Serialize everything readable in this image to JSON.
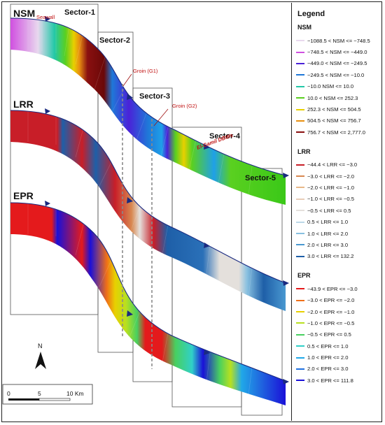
{
  "profiles": {
    "nsm": "NSM",
    "lrr": "LRR",
    "epr": "EPR"
  },
  "sectors": [
    "Sector-1",
    "Sector-2",
    "Sector-3",
    "Sector-4",
    "Sector-5"
  ],
  "annotations": {
    "seawall": "Seawall",
    "groin_g1": "Groin (G1)",
    "groin_g2": "Groin (G2)",
    "dbws": "El-Gamil DBWs"
  },
  "north_label": "N",
  "scale_bar": {
    "ticks": [
      "0",
      "5",
      "10 Km"
    ]
  },
  "legend": {
    "title": "Legend",
    "groups": [
      {
        "heading": "NSM",
        "items": [
          {
            "label": "−1088.5  < NSM <= −748.5",
            "color": "#e8d8ee"
          },
          {
            "label": "−748.5 < NSM <= −449.0",
            "color": "#d050e0"
          },
          {
            "label": "−449.0 < NSM <= −249.5",
            "color": "#4a22d8"
          },
          {
            "label": "−249.5 < NSM <= −10.0",
            "color": "#1f78d8"
          },
          {
            "label": "−10.0   NSM <= 10.0",
            "color": "#22c8a8"
          },
          {
            "label": "10.0 < NSM <= 252.3",
            "color": "#5ad020"
          },
          {
            "label": "252.3 < NSM <= 504.5",
            "color": "#e8d000"
          },
          {
            "label": "504.5 < NSM <= 756.7",
            "color": "#e89010"
          },
          {
            "label": "756.7 < NSM <= 2,777.0",
            "color": "#8a1010"
          }
        ]
      },
      {
        "heading": "LRR",
        "items": [
          {
            "label": "−44.4 < LRR <= −3.0",
            "color": "#c81e28"
          },
          {
            "label": "−3.0 < LRR <= −2.0",
            "color": "#d88850"
          },
          {
            "label": "−2.0 < LRR <= −1.0",
            "color": "#e8b888"
          },
          {
            "label": "−1.0 < LRR <= −0.5",
            "color": "#e8cdb8"
          },
          {
            "label": "−0.5 < LRR <= 0.5",
            "color": "#e4e0dc"
          },
          {
            "label": "0.5 < LRR <= 1.0",
            "color": "#bcd8e8"
          },
          {
            "label": "1.0 < LRR <= 2.0",
            "color": "#88c0e0"
          },
          {
            "label": "2.0 < LRR <= 3.0",
            "color": "#4a98d0"
          },
          {
            "label": "3.0 < LRR <= 132.2",
            "color": "#1e5fa8"
          }
        ]
      },
      {
        "heading": "EPR",
        "items": [
          {
            "label": "−43.9 < EPR <= −3.0",
            "color": "#e41a1c"
          },
          {
            "label": "−3.0 < EPR <= −2.0",
            "color": "#f07018"
          },
          {
            "label": "−2.0 < EPR <= −1.0",
            "color": "#e8d000"
          },
          {
            "label": "−1.0 < EPR <= −0.5",
            "color": "#b8e020"
          },
          {
            "label": "−0.5 < EPR <= 0.5",
            "color": "#48d060"
          },
          {
            "label": "0.5 < EPR <= 1.0",
            "color": "#30d0c8"
          },
          {
            "label": "1.0 < EPR <= 2.0",
            "color": "#20a8e8"
          },
          {
            "label": "2.0 < EPR <= 3.0",
            "color": "#2070e0"
          },
          {
            "label": "3.0 < EPR <= 111.8",
            "color": "#1a10d8"
          }
        ]
      }
    ]
  }
}
